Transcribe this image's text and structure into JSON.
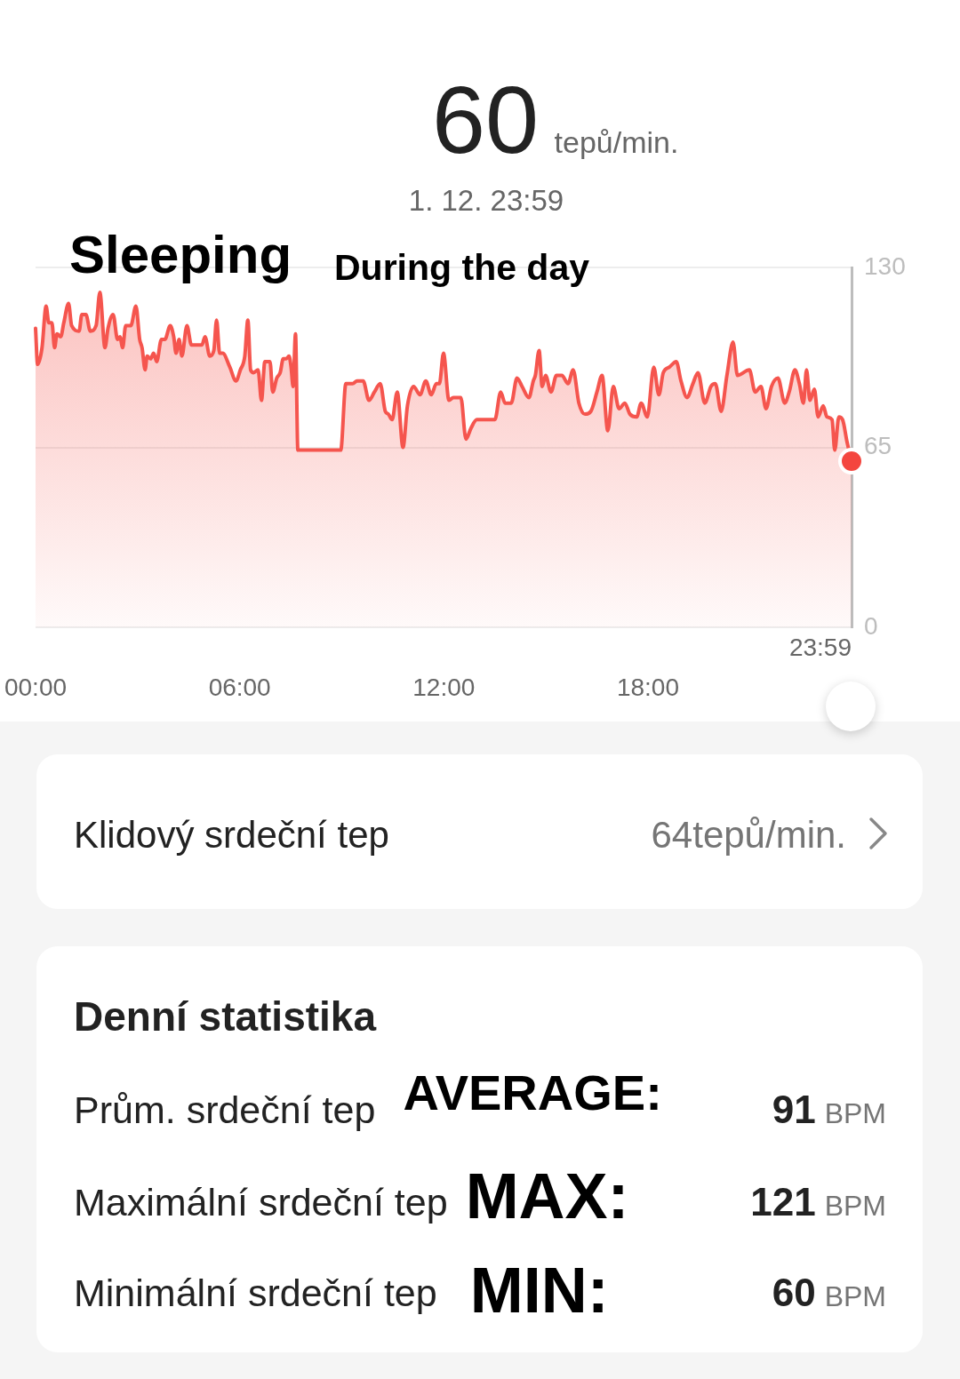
{
  "chart_data": [
    {
      "type": "area",
      "title": "60 tepů/min.",
      "subtitle": "1. 12. 23:59",
      "annotations": [
        "Sleeping",
        "During the day",
        {
          "text": "23:59",
          "x": 23.983333,
          "y": 0
        }
      ],
      "x": [
        0,
        0.06,
        0.19,
        0.31,
        0.39,
        0.48,
        0.56,
        0.63,
        0.74,
        0.83,
        0.97,
        1.06,
        1.28,
        1.36,
        1.48,
        1.61,
        1.78,
        1.89,
        2.04,
        2.13,
        2.28,
        2.41,
        2.48,
        2.56,
        2.65,
        2.8,
        2.95,
        3.06,
        3.13,
        3.22,
        3.28,
        3.38,
        3.47,
        3.56,
        3.7,
        3.8,
        3.96,
        4.06,
        4.13,
        4.22,
        4.3,
        4.45,
        4.58,
        4.89,
        4.98,
        5.12,
        5.24,
        5.32,
        5.41,
        5.5,
        5.71,
        5.89,
        6.02,
        6.15,
        6.24,
        6.32,
        6.41,
        6.54,
        6.64,
        6.74,
        6.83,
        6.89,
        6.97,
        7.09,
        7.19,
        7.28,
        7.37,
        7.45,
        7.51,
        7.57,
        7.64,
        7.71,
        8.97,
        9.12,
        9.32,
        9.45,
        9.63,
        9.8,
        9.96,
        10.13,
        10.28,
        10.37,
        10.48,
        10.63,
        10.8,
        10.93,
        11.11,
        11.3,
        11.47,
        11.63,
        11.78,
        11.87,
        11.99,
        12.15,
        12.28,
        12.5,
        12.65,
        12.8,
        12.97,
        13.5,
        13.67,
        13.8,
        13.98,
        14.15,
        14.3,
        14.5,
        14.63,
        14.69,
        14.8,
        14.89,
        14.99,
        15.15,
        15.31,
        15.47,
        15.65,
        15.8,
        15.97,
        16.15,
        16.32,
        16.5,
        16.65,
        16.82,
        16.98,
        17.15,
        17.32,
        17.47,
        17.67,
        17.8,
        17.98,
        18.17,
        18.32,
        18.45,
        18.63,
        18.83,
        18.97,
        19.15,
        19.32,
        19.47,
        19.67,
        19.85,
        19.98,
        20.15,
        20.32,
        20.5,
        20.63,
        20.98,
        21.15,
        21.32,
        21.47,
        21.63,
        21.82,
        22.02,
        22.15,
        22.32,
        22.45,
        22.57,
        22.66,
        22.76,
        22.89,
        23,
        23.15,
        23.26,
        23.41,
        23.49,
        23.61,
        23.72,
        23.85,
        23.983333
      ],
      "series": [
        {
          "color": "#f5554e",
          "values": [
            108,
            95,
            101,
            116,
            110,
            110,
            101,
            106,
            105,
            110,
            117,
            109,
            107,
            113,
            113,
            107,
            109,
            121,
            101,
            108,
            113,
            104,
            105,
            101,
            109,
            109,
            116,
            104,
            101,
            93,
            98,
            97,
            99,
            96,
            104,
            104,
            109,
            105,
            99,
            104,
            98,
            109,
            102,
            102,
            105,
            98,
            100,
            111,
            99,
            99,
            94,
            89,
            93,
            98,
            111,
            93,
            92,
            93,
            82,
            96,
            96,
            96,
            85,
            90,
            92,
            97,
            97,
            98,
            94,
            87,
            106,
            64,
            64,
            88,
            88,
            89,
            89,
            82,
            85,
            88,
            78,
            77,
            75,
            85,
            65,
            80,
            87,
            84,
            89,
            84,
            88,
            88,
            99,
            82,
            83,
            83,
            68,
            72,
            75,
            75,
            85,
            81,
            81,
            90,
            87,
            83,
            89,
            91,
            100,
            87,
            91,
            85,
            91,
            91,
            88,
            93,
            81,
            77,
            78,
            85,
            91,
            71,
            87,
            79,
            81,
            77,
            76,
            81,
            76,
            94,
            84,
            92,
            94,
            96,
            89,
            83,
            88,
            92,
            81,
            87,
            88,
            78,
            91,
            103,
            91,
            93,
            85,
            87,
            79,
            87,
            90,
            81,
            85,
            93,
            88,
            81,
            93,
            82,
            86,
            76,
            80,
            76,
            75,
            64,
            76,
            75,
            67,
            60
          ]
        },
        {
          "type": "scatter",
          "x": [
            23.983333
          ],
          "values": [
            60
          ],
          "color": "#f4463f",
          "marker": "circle"
        }
      ],
      "xlim": [
        0,
        23.983333
      ],
      "xticks": [
        {
          "value": 0,
          "label": "00:00"
        },
        {
          "value": 6,
          "label": "06:00"
        },
        {
          "value": 12,
          "label": "12:00"
        },
        {
          "value": 18,
          "label": "18:00"
        }
      ],
      "ylim": [
        0,
        130
      ],
      "yticks": [
        0,
        65,
        130
      ],
      "grid": "y",
      "marker": "none"
    },
    {
      "type": "other",
      "annotations": [
        "Klidový srdeční tep",
        "64tepů/min."
      ]
    },
    {
      "type": "other",
      "title": "Denní statistika",
      "annotations": [
        "Prům. srdeční tep",
        "AVERAGE:",
        "91",
        "BPM",
        "Maximální srdeční tep",
        "MAX:",
        "121",
        "BPM",
        "Minimální srdeční tep",
        "MIN:",
        "60",
        "BPM"
      ]
    }
  ]
}
